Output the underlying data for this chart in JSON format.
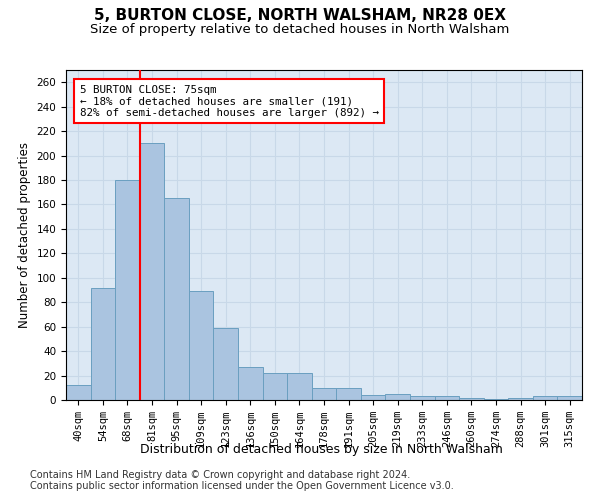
{
  "title1": "5, BURTON CLOSE, NORTH WALSHAM, NR28 0EX",
  "title2": "Size of property relative to detached houses in North Walsham",
  "xlabel": "Distribution of detached houses by size in North Walsham",
  "ylabel": "Number of detached properties",
  "categories": [
    "40sqm",
    "54sqm",
    "68sqm",
    "81sqm",
    "95sqm",
    "109sqm",
    "123sqm",
    "136sqm",
    "150sqm",
    "164sqm",
    "178sqm",
    "191sqm",
    "205sqm",
    "219sqm",
    "233sqm",
    "246sqm",
    "260sqm",
    "274sqm",
    "288sqm",
    "301sqm",
    "315sqm"
  ],
  "values": [
    12,
    92,
    180,
    210,
    165,
    89,
    59,
    27,
    22,
    22,
    10,
    10,
    4,
    5,
    3,
    3,
    2,
    1,
    2,
    3,
    3
  ],
  "bar_color": "#aac4e0",
  "bar_edge_color": "#6a9fc0",
  "annotation_text": "5 BURTON CLOSE: 75sqm\n← 18% of detached houses are smaller (191)\n82% of semi-detached houses are larger (892) →",
  "ylim": [
    0,
    270
  ],
  "yticks": [
    0,
    20,
    40,
    60,
    80,
    100,
    120,
    140,
    160,
    180,
    200,
    220,
    240,
    260
  ],
  "grid_color": "#c8d8e8",
  "background_color": "#dce8f4",
  "footer1": "Contains HM Land Registry data © Crown copyright and database right 2024.",
  "footer2": "Contains public sector information licensed under the Open Government Licence v3.0.",
  "title1_fontsize": 11,
  "title2_fontsize": 9.5,
  "xlabel_fontsize": 9,
  "ylabel_fontsize": 8.5,
  "tick_fontsize": 7.5,
  "footer_fontsize": 7,
  "vline_pos": 2.5
}
